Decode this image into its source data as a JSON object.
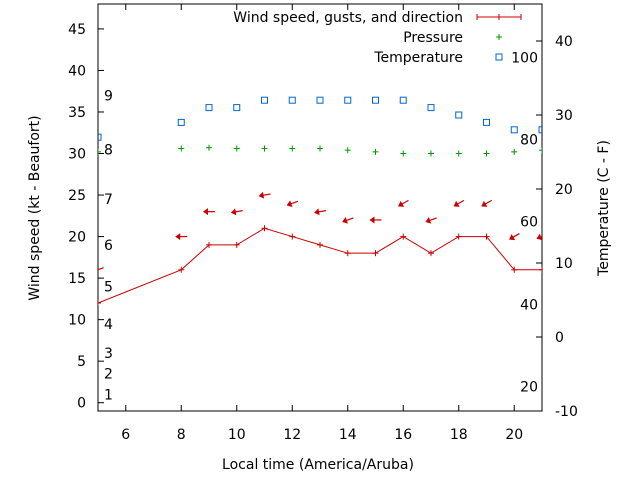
{
  "chart_data": {
    "type": "line",
    "title": "",
    "xlabel": "Local time (America/Aruba)",
    "ylabel": "Wind speed (kt - Beaufort)",
    "y2label": "Temperature (C - F)",
    "xlim": [
      5,
      21
    ],
    "ylim": [
      -1,
      48
    ],
    "y2lim": [
      -10,
      45
    ],
    "x_ticks": [
      6,
      8,
      10,
      12,
      14,
      16,
      18,
      20
    ],
    "y_ticks": [
      0,
      5,
      10,
      15,
      20,
      25,
      30,
      35,
      40,
      45
    ],
    "y2_ticks": [
      -10,
      0,
      10,
      20,
      30,
      40
    ],
    "beaufort_labels": [
      {
        "label": "1",
        "kt": 1.0
      },
      {
        "label": "2",
        "kt": 3.5
      },
      {
        "label": "3",
        "kt": 6.0
      },
      {
        "label": "4",
        "kt": 9.5
      },
      {
        "label": "5",
        "kt": 14.0
      },
      {
        "label": "6",
        "kt": 19.0
      },
      {
        "label": "7",
        "kt": 24.5
      },
      {
        "label": "8",
        "kt": 30.5
      },
      {
        "label": "9",
        "kt": 37.0
      }
    ],
    "fahrenheit_labels": [
      {
        "label": "20",
        "c": -6.7
      },
      {
        "label": "40",
        "c": 4.4
      },
      {
        "label": "60",
        "c": 15.6
      },
      {
        "label": "80",
        "c": 26.7
      },
      {
        "label": "100",
        "c": 37.8
      }
    ],
    "legend": [
      {
        "label": "Wind speed, gusts, and direction",
        "symbol": "line-plus",
        "color": "#cc0000"
      },
      {
        "label": "Pressure",
        "symbol": "plus",
        "color": "#009900"
      },
      {
        "label": "Temperature",
        "symbol": "square",
        "color": "#0066cc"
      }
    ],
    "legend_position": "top-right",
    "series": [
      {
        "name": "Wind speed",
        "axis": "y",
        "color": "#cc0000",
        "x": [
          5,
          8,
          9,
          10,
          11,
          12,
          13,
          14,
          15,
          16,
          17,
          18,
          19,
          20,
          21
        ],
        "values": [
          12,
          16,
          19,
          19,
          21,
          20,
          19,
          18,
          18,
          20,
          18,
          20,
          20,
          16,
          16
        ]
      },
      {
        "name": "Wind gusts and direction",
        "axis": "y",
        "color": "#cc0000",
        "x": [
          5,
          8,
          9,
          10,
          11,
          12,
          13,
          14,
          15,
          16,
          17,
          18,
          19,
          20,
          21
        ],
        "values": [
          16,
          20,
          23,
          23,
          25,
          24,
          23,
          22,
          22,
          24,
          22,
          24,
          24,
          20,
          20
        ],
        "direction_deg": [
          70,
          90,
          90,
          80,
          80,
          70,
          80,
          70,
          90,
          60,
          70,
          60,
          60,
          60,
          70
        ]
      },
      {
        "name": "Pressure",
        "axis": "y",
        "color": "#009900",
        "x": [
          5,
          8,
          9,
          10,
          11,
          12,
          13,
          14,
          15,
          16,
          17,
          18,
          19,
          20,
          21
        ],
        "values": [
          30.2,
          30.6,
          30.7,
          30.6,
          30.6,
          30.6,
          30.6,
          30.4,
          30.2,
          30.0,
          30.0,
          30.0,
          30.0,
          30.2,
          30.4
        ]
      },
      {
        "name": "Temperature",
        "axis": "y2",
        "color": "#0066cc",
        "x": [
          5,
          8,
          9,
          10,
          11,
          12,
          13,
          14,
          15,
          16,
          17,
          18,
          19,
          20,
          21
        ],
        "values": [
          27,
          29,
          31,
          31,
          32,
          32,
          32,
          32,
          32,
          32,
          31,
          30,
          29,
          28,
          28
        ]
      }
    ]
  }
}
